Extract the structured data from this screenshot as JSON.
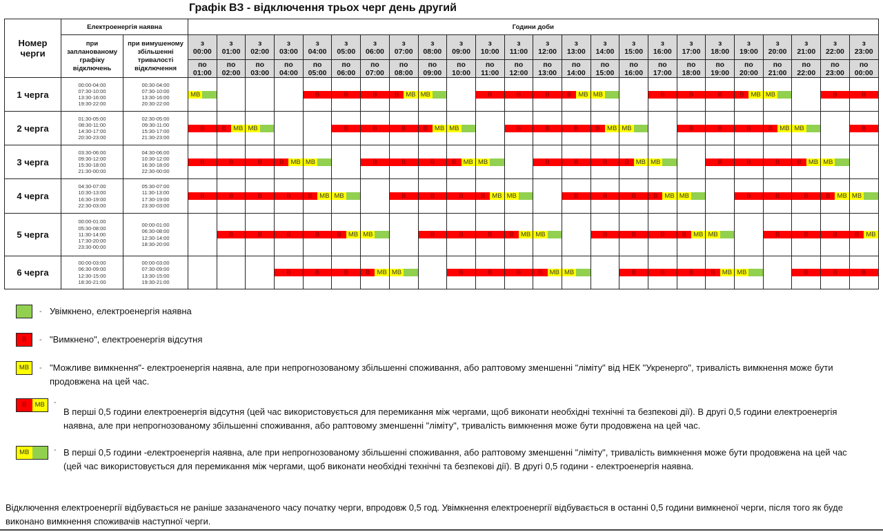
{
  "title": "Графік ВЗ - відключення трьох черг день другий",
  "header": {
    "queue_col": "Номер черги",
    "power_available": "Електроенергія наявна",
    "planned": "при запланованому графіку відключень",
    "forced": "при вимушеному збільшенні тривалості відключення",
    "hours_of_day": "Години доби",
    "from_prefix": "з",
    "to_prefix": "по",
    "hours_from": [
      "00:00",
      "01:00",
      "02:00",
      "03:00",
      "04:00",
      "05:00",
      "06:00",
      "07:00",
      "08:00",
      "09:00",
      "10:00",
      "11:00",
      "12:00",
      "13:00",
      "14:00",
      "15:00",
      "16:00",
      "17:00",
      "18:00",
      "19:00",
      "20:00",
      "21:00",
      "22:00",
      "23:00"
    ],
    "hours_to": [
      "01:00",
      "02:00",
      "03:00",
      "04:00",
      "05:00",
      "06:00",
      "07:00",
      "08:00",
      "09:00",
      "10:00",
      "11:00",
      "12:00",
      "13:00",
      "14:00",
      "15:00",
      "16:00",
      "17:00",
      "18:00",
      "19:00",
      "20:00",
      "21:00",
      "22:00",
      "23:00",
      "00:00"
    ]
  },
  "cell_labels": {
    "off": "В",
    "maybe": "МВ"
  },
  "colors": {
    "on": "#92d050",
    "off": "#ff0000",
    "maybe": "#ffff00"
  },
  "queues": [
    {
      "name": "1 черга",
      "planned": [
        "00:00-04:00",
        "07:30-10:00",
        "13:30-16:00",
        "19:30-22:00"
      ],
      "forced": [
        "00:30-04:00",
        "07:30-10:00",
        "13:30-16:00",
        "20:30-22:00"
      ],
      "hours": [
        "YG",
        "G",
        "G",
        "G",
        "R",
        "R",
        "R",
        "RY",
        "YG",
        "G",
        "R",
        "R",
        "R",
        "RY",
        "YG",
        "G",
        "R",
        "R",
        "R",
        "RY",
        "YG",
        "G",
        "R",
        "R"
      ]
    },
    {
      "name": "2 черга",
      "planned": [
        "01:30-05:00",
        "08:30-11:00",
        "14:30-17:00",
        "20:30-23:00"
      ],
      "forced": [
        "02:30-05:00",
        "09:30-11:00",
        "15:30-17:00",
        "21:30-23:00"
      ],
      "hours": [
        "R",
        "RY",
        "YG",
        "G",
        "G",
        "R",
        "R",
        "R",
        "RY",
        "YG",
        "G",
        "R",
        "R",
        "R",
        "RY",
        "YG",
        "G",
        "R",
        "R",
        "R",
        "RY",
        "YG",
        "G",
        "R"
      ]
    },
    {
      "name": "3 черга",
      "planned": [
        "03:30-06:00",
        "09:30-12:00",
        "15:30-18:00",
        "21:30-00:00"
      ],
      "forced": [
        "04:30-06:00",
        "10:30-12:00",
        "16:30-18:00",
        "22:30-00:00"
      ],
      "hours": [
        "R",
        "R",
        "R",
        "RY",
        "YG",
        "G",
        "R",
        "R",
        "R",
        "RY",
        "YG",
        "G",
        "R",
        "R",
        "R",
        "RY",
        "YG",
        "G",
        "R",
        "R",
        "R",
        "RY",
        "YG",
        "G"
      ]
    },
    {
      "name": "4 черга",
      "planned": [
        "04:30-07:00",
        "10:30-13:00",
        "16:30-19:00",
        "22:30-03:00"
      ],
      "forced": [
        "05:30-07:00",
        "11:30-13:00",
        "17:30-19:00",
        "23:30-03:00"
      ],
      "hours": [
        "R",
        "R",
        "R",
        "R",
        "RY",
        "YG",
        "G",
        "R",
        "R",
        "R",
        "RY",
        "YG",
        "G",
        "R",
        "R",
        "R",
        "RY",
        "YG",
        "G",
        "R",
        "R",
        "R",
        "RY",
        "YG"
      ]
    },
    {
      "name": "5 черга",
      "planned": [
        "00:00-01:00",
        "05:30-08:00",
        "11:30-14:00",
        "17:30-20:00",
        "23:30-00:00"
      ],
      "forced": [
        "00:00-01:00",
        "06:30-08:00",
        "12:30-14:00",
        "18:30-20:00"
      ],
      "hours": [
        "G",
        "R",
        "R",
        "R",
        "R",
        "RY",
        "YG",
        "G",
        "R",
        "R",
        "R",
        "RY",
        "YG",
        "G",
        "R",
        "R",
        "R",
        "RY",
        "YG",
        "G",
        "R",
        "R",
        "R",
        "RY"
      ]
    },
    {
      "name": "6 черга",
      "planned": [
        "00:00-03:00",
        "06:30-09:00",
        "12:30-15:00",
        "18:30-21:00"
      ],
      "forced": [
        "00:00-03:00",
        "07:30-09:00",
        "13:30-15:00",
        "19:30-21:00"
      ],
      "hours": [
        "G",
        "G",
        "G",
        "R",
        "R",
        "R",
        "RY",
        "YG",
        "G",
        "R",
        "R",
        "R",
        "RY",
        "YG",
        "G",
        "R",
        "R",
        "R",
        "RY",
        "YG",
        "G",
        "R",
        "R",
        "R"
      ]
    }
  ],
  "legend": [
    {
      "swatch": "G",
      "text": "Увімкнено, електроенергія наявна"
    },
    {
      "swatch": "R",
      "text": "\"Вимкнено\", електроенергія відсутня"
    },
    {
      "swatch": "Y",
      "text": "\"Можливе вимкнення\"- електроенергія наявна, але при непрогнозованому збільшенні споживання, або раптовому зменшенні \"ліміту\" від НЕК \"Укренерго\", тривалість вимкнення може бути продовжена на цей час."
    },
    {
      "swatch": "RY",
      "text": "В перші 0,5 години електроенергія відсутня (цей час використовується для перемикання між чергами, щоб виконати необхідні технічні та безпекові дії). В другі 0,5 години електроенергія наявна, але при непрогнозованому збільшенні споживання, або раптовому зменшенні \"ліміту\", тривалість вимкнення може бути продовжена на цей час."
    },
    {
      "swatch": "YG",
      "text": "В перші 0,5 години -електроенергія наявна, але при непрогнозованому збільшенні споживання, або раптовому зменшенні \"ліміту\", тривалість вимкнення може бути продовжена на цей час (цей час використовується для перемикання між чергами, щоб виконати необхідні технічні та безпекові дії). В другі 0,5 години - електроенергія наявна."
    }
  ],
  "footer": "Відключення електроенергії відбувається не раніше зазаначеного часу початку черги, впродовж 0,5 год. Увімкнення електроенергії відбувається в останні 0,5 години вимкненої черги, після того як буде виконано вимкнення споживачів наступної черги."
}
